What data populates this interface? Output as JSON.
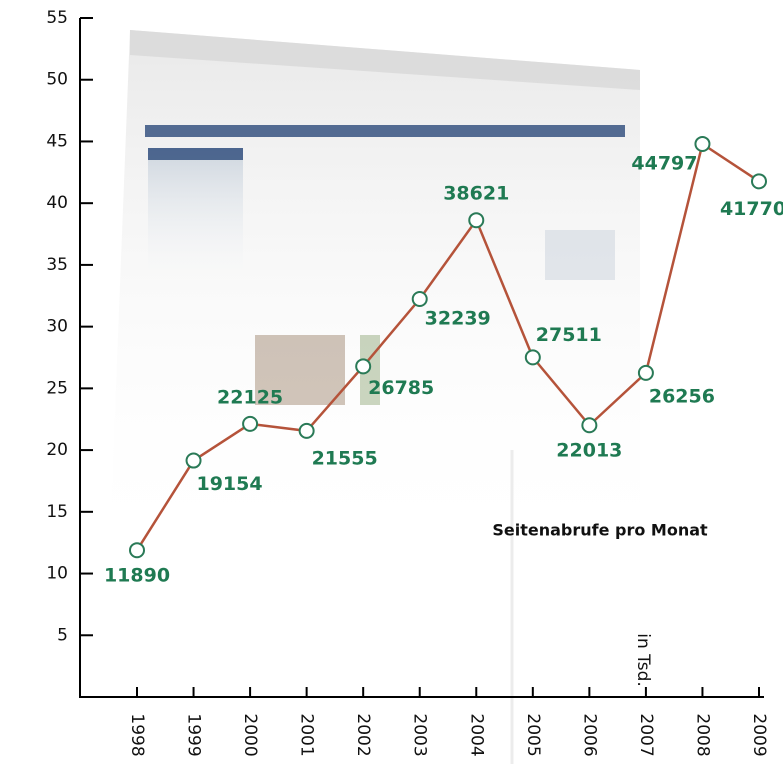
{
  "chart_data": {
    "type": "line",
    "annotation": "Seitenabrufe pro Monat",
    "y_label": "in Tsd.",
    "categories": [
      "1998",
      "1999",
      "2000",
      "2001",
      "2002",
      "2003",
      "2004",
      "2005",
      "2006",
      "2007",
      "2008",
      "2009"
    ],
    "values": [
      11.89,
      19.154,
      22.125,
      21.555,
      26.785,
      32.239,
      38.621,
      27.511,
      22.013,
      26.256,
      44.797,
      41.77
    ],
    "value_labels": [
      "11890",
      "19154",
      "22125",
      "21555",
      "26785",
      "32239",
      "38621",
      "27511",
      "22013",
      "26256",
      "44797",
      "41770"
    ],
    "color": "#b5533a",
    "marker_color": "#2a7a57",
    "label_color": "#1f7a52",
    "ylim": [
      0,
      55
    ],
    "yticks": [
      5,
      10,
      15,
      20,
      25,
      30,
      35,
      40,
      45,
      50,
      55
    ]
  }
}
